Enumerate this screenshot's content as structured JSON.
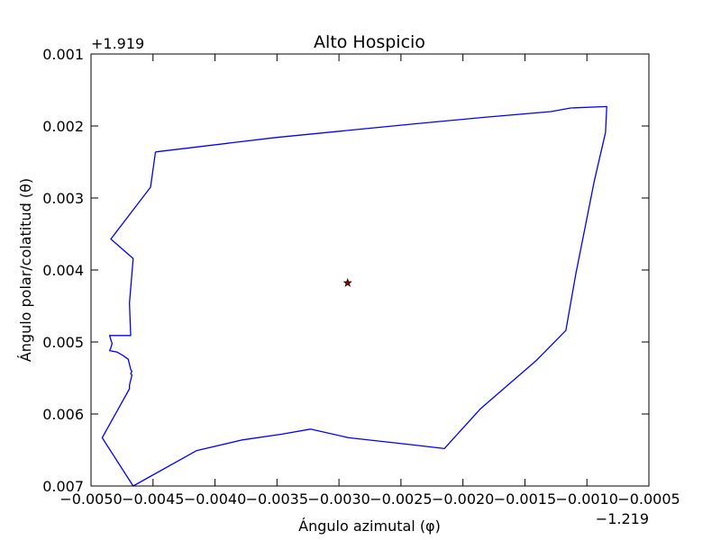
{
  "chart_data": {
    "type": "line",
    "title": "Alto Hospicio",
    "xlabel": "Ángulo azimutal (φ)",
    "ylabel": "Ángulo polar/colatitud (θ)",
    "x_offset_label": "−1.219",
    "y_offset_label": "+1.919",
    "xlim": [
      -0.005,
      -0.0005
    ],
    "ylim": [
      0.007,
      0.001
    ],
    "y_inverted": true,
    "x_ticks": [
      -0.005,
      -0.0045,
      -0.004,
      -0.0035,
      -0.003,
      -0.0025,
      -0.002,
      -0.0015,
      -0.001,
      -0.0005
    ],
    "x_tick_labels": [
      "−0.0050",
      "−0.0045",
      "−0.0040",
      "−0.0035",
      "−0.0030",
      "−0.0025",
      "−0.0020",
      "−0.0015",
      "−0.0010",
      "−0.0005"
    ],
    "y_ticks": [
      0.001,
      0.002,
      0.003,
      0.004,
      0.005,
      0.006,
      0.007
    ],
    "y_tick_labels": [
      "0.001",
      "0.002",
      "0.003",
      "0.004",
      "0.005",
      "0.006",
      "0.007"
    ],
    "grid": false,
    "series": [
      {
        "color": "#0000ff",
        "x": [
          -0.00448,
          -0.00351,
          -0.00239,
          -0.00183,
          -0.00129,
          -0.00113,
          -0.00084,
          -0.00085,
          -0.00094,
          -0.00109,
          -0.00117,
          -0.00141,
          -0.00186,
          -0.00215,
          -0.0024,
          -0.00292,
          -0.00323,
          -0.00346,
          -0.00378,
          -0.00415,
          -0.00466,
          -0.00491,
          -0.00469,
          -0.00469,
          -0.00467,
          -0.00468,
          -0.00467,
          -0.00468,
          -0.0047,
          -0.00474,
          -0.00479,
          -0.00485,
          -0.00484,
          -0.00483,
          -0.00484,
          -0.00485,
          -0.00468,
          -0.00469,
          -0.00466,
          -0.00484,
          -0.00452,
          -0.00448
        ],
        "y": [
          0.00236,
          0.00216,
          0.00197,
          0.00188,
          0.0018,
          0.00175,
          0.00173,
          0.00209,
          0.00276,
          0.00406,
          0.00484,
          0.00526,
          0.00593,
          0.00648,
          0.00643,
          0.00633,
          0.00621,
          0.00628,
          0.00636,
          0.00651,
          0.007,
          0.00633,
          0.00565,
          0.0056,
          0.00546,
          0.00544,
          0.00541,
          0.00538,
          0.00524,
          0.00519,
          0.00514,
          0.00512,
          0.00508,
          0.00502,
          0.00497,
          0.00491,
          0.00491,
          0.00446,
          0.00384,
          0.00357,
          0.00285,
          0.00236
        ]
      },
      {
        "type": "scatter",
        "marker": "star",
        "color": "#8b0000",
        "x": [
          -0.00293
        ],
        "y": [
          0.00418
        ]
      }
    ]
  }
}
